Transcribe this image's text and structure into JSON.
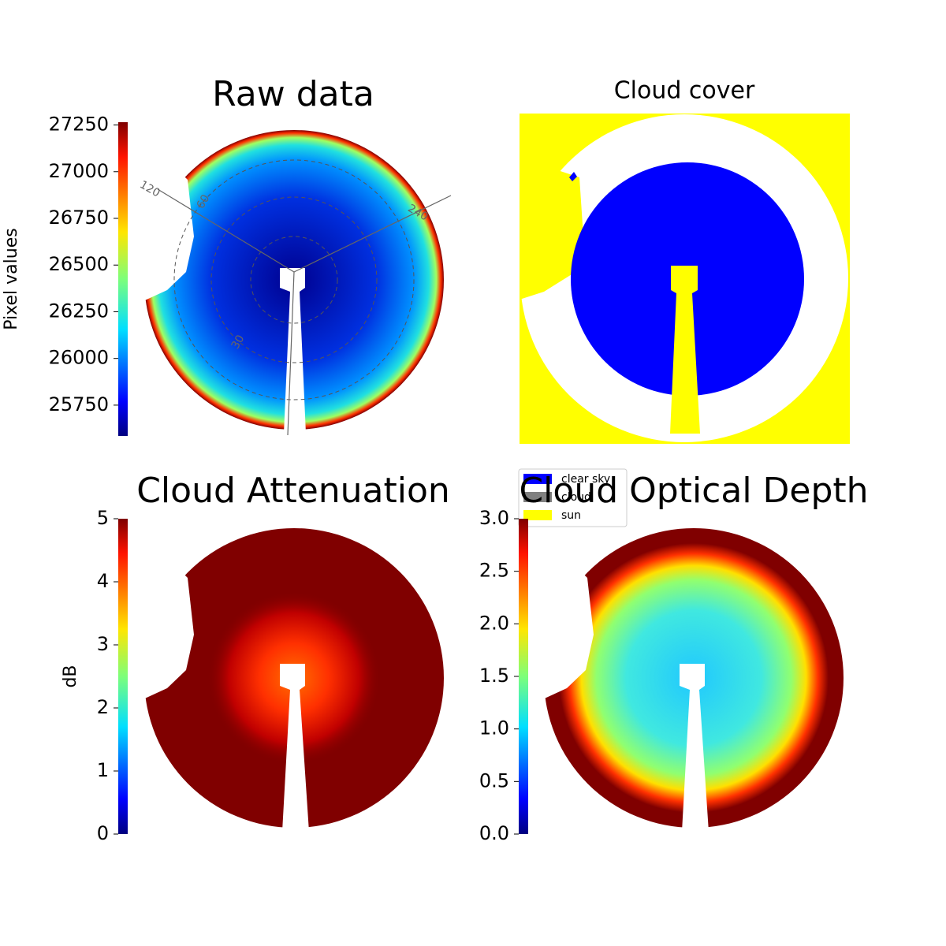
{
  "chart_data": [
    {
      "type": "image",
      "title": "Raw data",
      "colormap": "jet",
      "colorbar_label": "Pixel values",
      "clim": [
        25585,
        27265
      ],
      "cticks": [
        25750,
        26000,
        26250,
        26500,
        26750,
        27000,
        27250
      ],
      "annotations": [
        "120",
        "60",
        "240",
        "30"
      ]
    },
    {
      "type": "image",
      "title": "Cloud cover",
      "legend": [
        {
          "name": "clear sky",
          "color": "#0000ff"
        },
        {
          "name": "cloud",
          "color": "#808080"
        },
        {
          "name": "sun",
          "color": "#ffff00"
        }
      ],
      "legend_loc": "lower left"
    },
    {
      "type": "image",
      "title": "Cloud Attenuation",
      "colormap": "jet",
      "colorbar_label": "dB",
      "clim": [
        0,
        5
      ],
      "cticks": [
        0,
        1,
        2,
        3,
        4,
        5
      ]
    },
    {
      "type": "image",
      "title": "Cloud Optical Depth",
      "colormap": "jet",
      "clim": [
        0,
        3
      ],
      "cticks": [
        {
          "value": 0,
          "label": "0.0"
        },
        {
          "value": 0.5,
          "label": "0.5"
        },
        {
          "value": 1,
          "label": "1.0"
        },
        {
          "value": 1.5,
          "label": "1.5"
        },
        {
          "value": 2,
          "label": "2.0"
        },
        {
          "value": 2.5,
          "label": "2.5"
        },
        {
          "value": 3,
          "label": "3.0"
        }
      ]
    }
  ]
}
